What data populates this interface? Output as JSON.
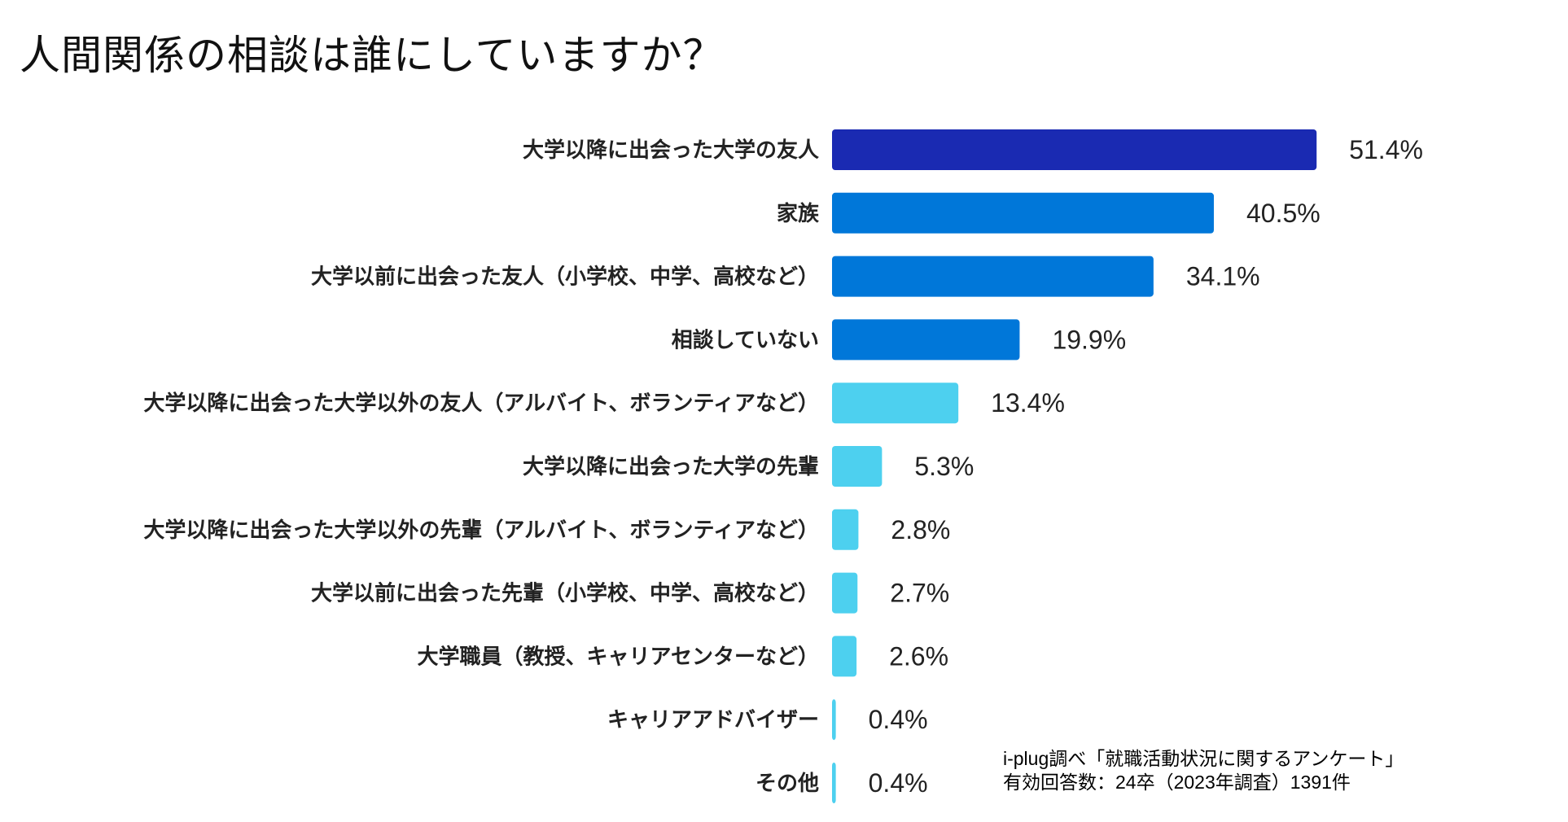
{
  "title": "人間関係の相談は誰にしていますか？",
  "note": {
    "line1": "i-plug調べ「就職活動状況に関するアンケート」",
    "line2": "有効回答数：24卒（2023年調査）1391件"
  },
  "chart_data": {
    "type": "bar",
    "orientation": "horizontal",
    "title": "人間関係の相談は誰にしていますか？",
    "unit": "%",
    "xlim": [
      0,
      60
    ],
    "grid": false,
    "categories": [
      "大学以降に出会った大学の友人",
      "家族",
      "大学以前に出会った友人（小学校、中学、高校など）",
      "相談していない",
      "大学以降に出会った大学以外の友人（アルバイト、ボランティアなど）",
      "大学以降に出会った大学の先輩",
      "大学以降に出会った大学以外の先輩（アルバイト、ボランティアなど）",
      "大学以前に出会った先輩（小学校、中学、高校など）",
      "大学職員（教授、キャリアセンターなど）",
      "キャリアアドバイザー",
      "その他"
    ],
    "values": [
      51.4,
      40.5,
      34.1,
      19.9,
      13.4,
      5.3,
      2.8,
      2.7,
      2.6,
      0.4,
      0.4
    ],
    "labels": [
      "51.4%",
      "40.5%",
      "34.1%",
      "19.9%",
      "13.4%",
      "5.3%",
      "2.8%",
      "2.7%",
      "2.6%",
      "0.4%",
      "0.4%"
    ],
    "colors": [
      "#1a2ab2",
      "#0077d9",
      "#0077d9",
      "#0077d9",
      "#4dd0ef",
      "#4dd0ef",
      "#4dd0ef",
      "#4dd0ef",
      "#4dd0ef",
      "#4dd0ef",
      "#4dd0ef"
    ]
  }
}
